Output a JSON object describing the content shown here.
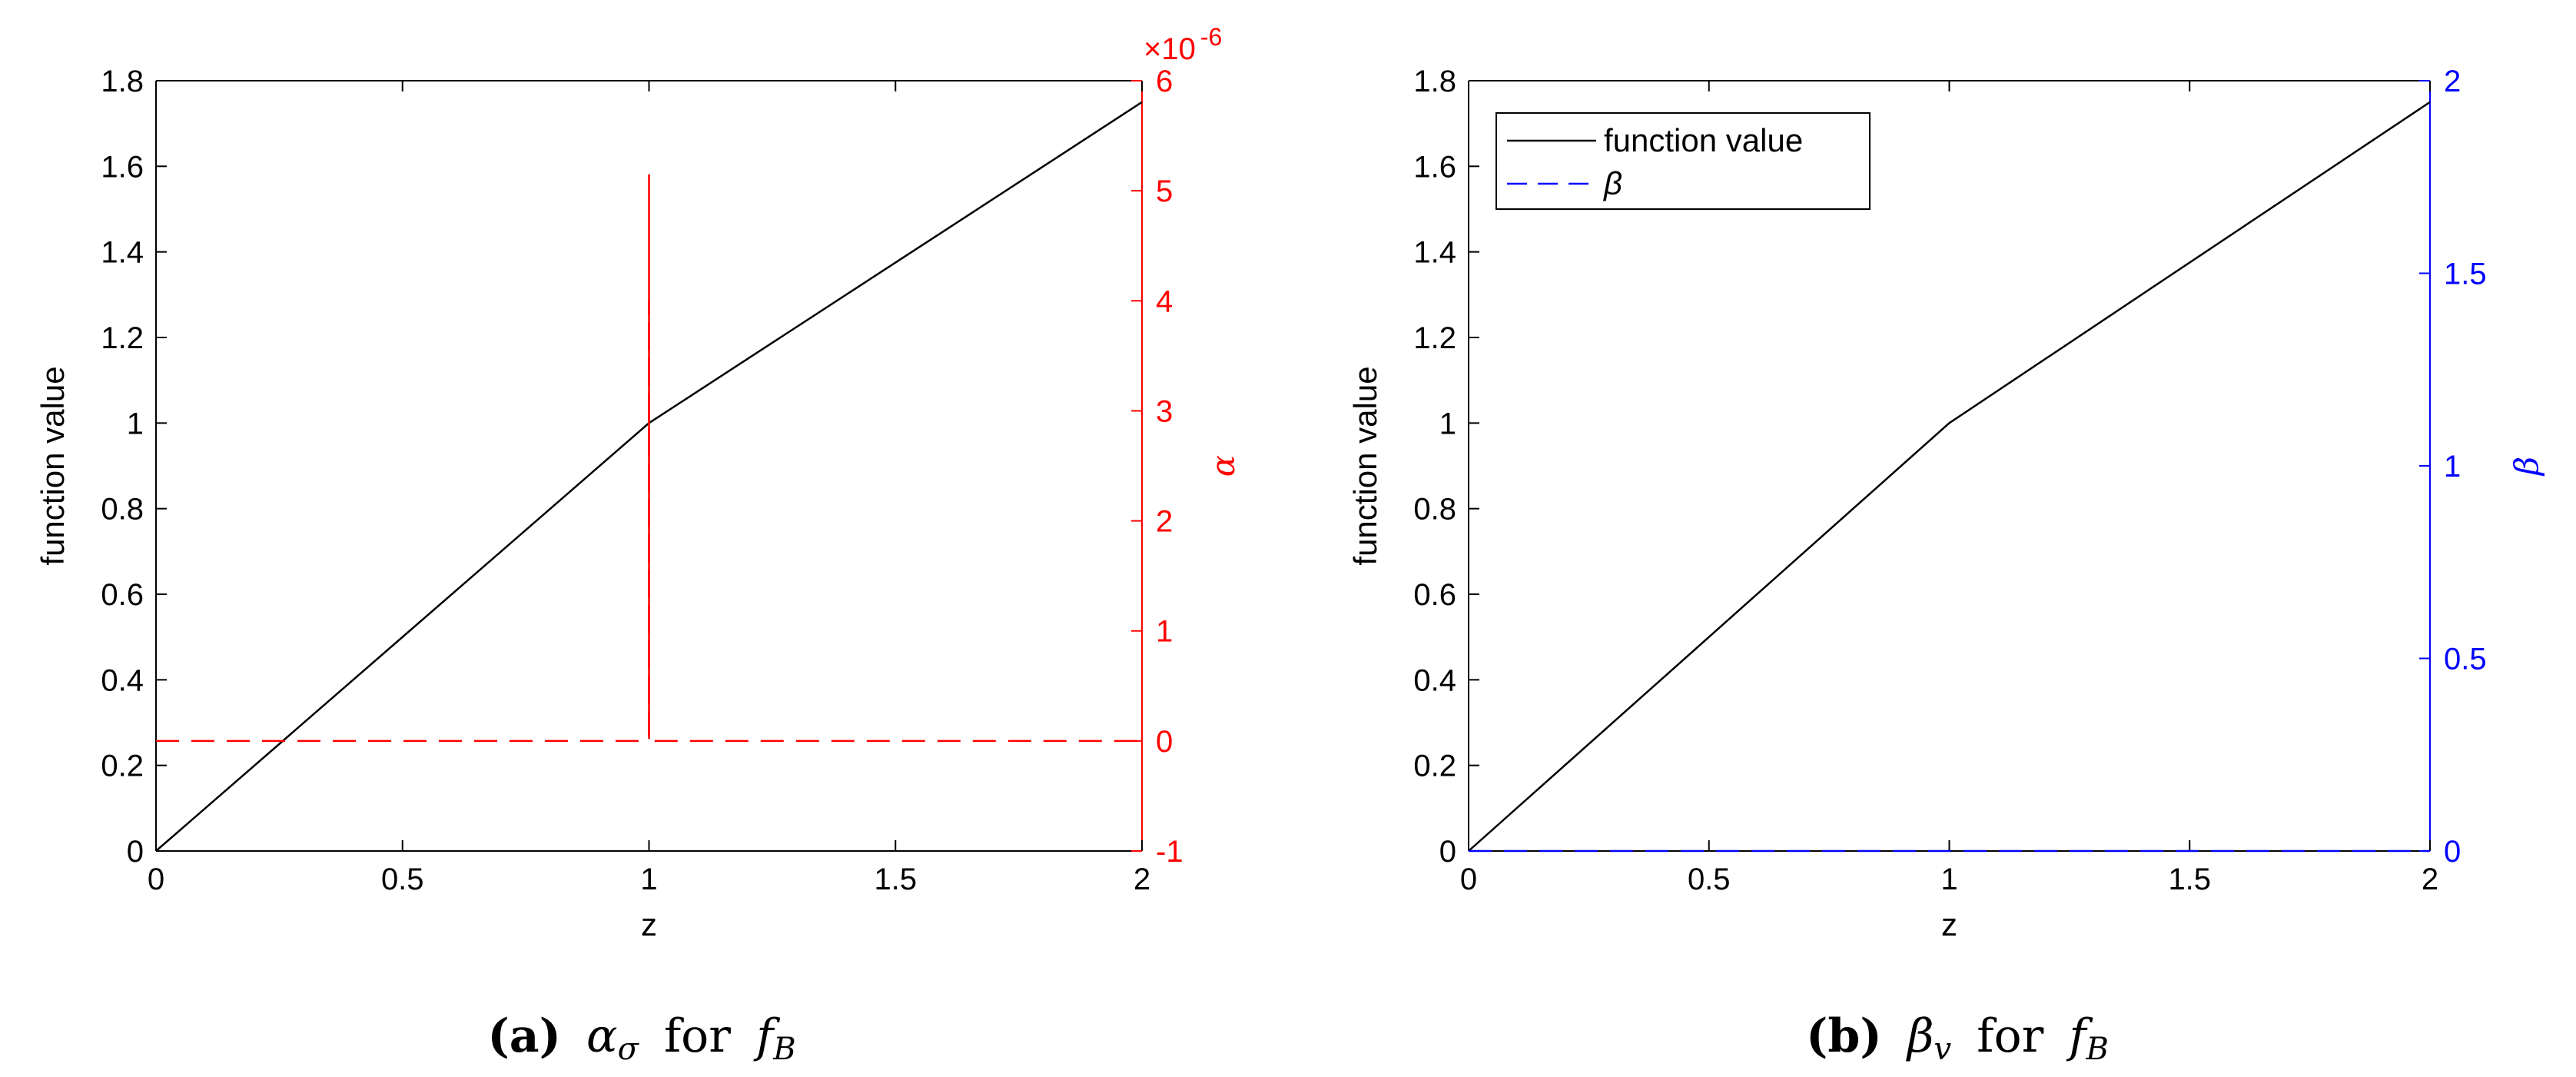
{
  "colors": {
    "black": "#000000",
    "red": "#ff0000",
    "blue": "#0000ff",
    "background": "#ffffff"
  },
  "chart_data": [
    {
      "type": "line",
      "panel": "a",
      "caption": {
        "label": "(a)",
        "text_mid": "α",
        "text_mid_sub": "σ",
        "text_for": "for",
        "text_f": "f",
        "text_f_sub": "B"
      },
      "xlabel": "z",
      "ylabel_left": "function value",
      "ylabel_right": "α",
      "right_axis_color": "#ff0000",
      "right_axis_exponent": "×10",
      "right_axis_exponent_power": "-6",
      "xlim": [
        0,
        2
      ],
      "ylim_left": [
        0,
        1.8
      ],
      "ylim_right": [
        -1,
        6
      ],
      "xticks": [
        0,
        0.5,
        1,
        1.5,
        2
      ],
      "xtick_labels": [
        "0",
        "0.5",
        "1",
        "1.5",
        "2"
      ],
      "yticks_left": [
        0,
        0.2,
        0.4,
        0.6,
        0.8,
        1,
        1.2,
        1.4,
        1.6,
        1.8
      ],
      "ytick_labels_left": [
        "0",
        "0.2",
        "0.4",
        "0.6",
        "0.8",
        "1",
        "1.2",
        "1.4",
        "1.6",
        "1.8"
      ],
      "yticks_right": [
        -1,
        0,
        1,
        2,
        3,
        4,
        5,
        6
      ],
      "ytick_labels_right": [
        "-1",
        "0",
        "1",
        "2",
        "3",
        "4",
        "5",
        "6"
      ],
      "legend": null,
      "grid": false,
      "series": [
        {
          "axis": "left",
          "color": "#000000",
          "dash": "solid",
          "x": [
            0,
            1,
            2
          ],
          "y": [
            0,
            1,
            1.75
          ]
        },
        {
          "axis": "right",
          "color": "#ff0000",
          "dash": "dashed",
          "x": [
            0,
            1,
            1,
            1,
            2
          ],
          "y": [
            0,
            0,
            4.0,
            0,
            0
          ]
        },
        {
          "axis": "right",
          "color": "#ff0000",
          "dash": "solid",
          "x": [
            1,
            1
          ],
          "y": [
            0.05,
            5.15
          ]
        }
      ]
    },
    {
      "type": "line",
      "panel": "b",
      "caption": {
        "label": "(b)",
        "text_mid": "β",
        "text_mid_sub": "v",
        "text_for": "for",
        "text_f": "f",
        "text_f_sub": "B"
      },
      "xlabel": "z",
      "ylabel_left": "function value",
      "ylabel_right": "β",
      "right_axis_color": "#0000ff",
      "xlim": [
        0,
        2
      ],
      "ylim_left": [
        0,
        1.8
      ],
      "ylim_right": [
        0,
        2
      ],
      "xticks": [
        0,
        0.5,
        1,
        1.5,
        2
      ],
      "xtick_labels": [
        "0",
        "0.5",
        "1",
        "1.5",
        "2"
      ],
      "yticks_left": [
        0,
        0.2,
        0.4,
        0.6,
        0.8,
        1,
        1.2,
        1.4,
        1.6,
        1.8
      ],
      "ytick_labels_left": [
        "0",
        "0.2",
        "0.4",
        "0.6",
        "0.8",
        "1",
        "1.2",
        "1.4",
        "1.6",
        "1.8"
      ],
      "yticks_right": [
        0,
        0.5,
        1,
        1.5,
        2
      ],
      "ytick_labels_right": [
        "0",
        "0.5",
        "1",
        "1.5",
        "2"
      ],
      "legend": {
        "position": "top-left",
        "entries": [
          "function value",
          "β"
        ]
      },
      "grid": false,
      "series": [
        {
          "name": "function value",
          "axis": "left",
          "color": "#000000",
          "dash": "solid",
          "x": [
            0,
            1,
            2
          ],
          "y": [
            0,
            1,
            1.75
          ]
        },
        {
          "name": "β",
          "axis": "right",
          "color": "#0000ff",
          "dash": "dashed",
          "x": [
            0,
            2
          ],
          "y": [
            0,
            0
          ]
        }
      ]
    }
  ]
}
